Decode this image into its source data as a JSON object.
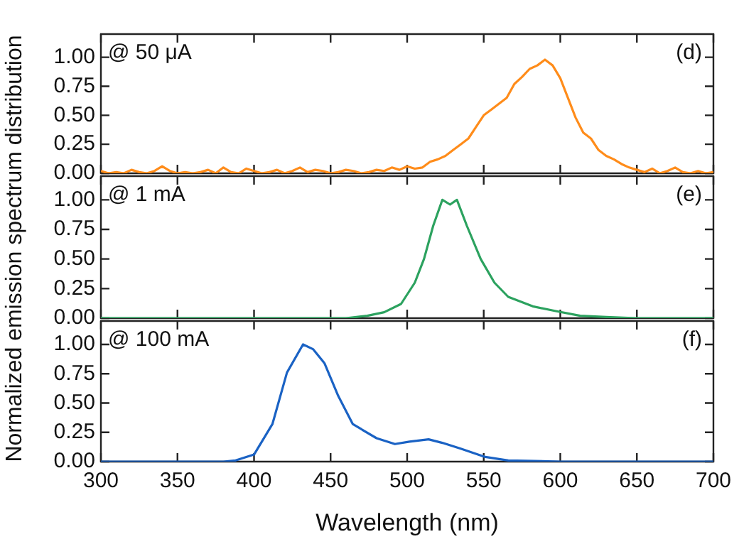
{
  "chart_data": [
    {
      "type": "line",
      "tick_labels": "y",
      "annotations": [
        "@ 50 μA",
        "(d)"
      ],
      "x": [
        300,
        305,
        310,
        315,
        320,
        325,
        330,
        335,
        340,
        345,
        350,
        355,
        360,
        365,
        370,
        375,
        380,
        385,
        390,
        395,
        400,
        405,
        410,
        415,
        420,
        425,
        430,
        435,
        440,
        445,
        450,
        455,
        460,
        465,
        470,
        475,
        480,
        485,
        490,
        495,
        500,
        505,
        510,
        515,
        520,
        525,
        530,
        535,
        540,
        545,
        550,
        555,
        560,
        565,
        570,
        575,
        580,
        585,
        590,
        595,
        600,
        605,
        610,
        615,
        620,
        625,
        630,
        635,
        640,
        645,
        650,
        655,
        660,
        665,
        670,
        675,
        680,
        685,
        690,
        695,
        700
      ],
      "series": [
        {
          "color": "#ff8c1a",
          "values": [
            0.02,
            0.0,
            0.01,
            0.0,
            0.03,
            0.01,
            0.0,
            0.02,
            0.06,
            0.02,
            0.0,
            0.01,
            0.0,
            0.01,
            0.03,
            0.0,
            0.05,
            0.01,
            0.0,
            0.04,
            0.02,
            0.0,
            0.01,
            0.03,
            0.0,
            0.02,
            0.05,
            0.01,
            0.03,
            0.02,
            0.0,
            0.01,
            0.03,
            0.02,
            0.0,
            0.01,
            0.03,
            0.02,
            0.05,
            0.03,
            0.06,
            0.04,
            0.05,
            0.1,
            0.12,
            0.15,
            0.2,
            0.25,
            0.3,
            0.4,
            0.5,
            0.55,
            0.6,
            0.65,
            0.77,
            0.83,
            0.9,
            0.93,
            0.98,
            0.93,
            0.82,
            0.65,
            0.48,
            0.35,
            0.3,
            0.2,
            0.15,
            0.12,
            0.08,
            0.05,
            0.03,
            0.01,
            0.04,
            0.0,
            0.02,
            0.05,
            0.01,
            0.0,
            0.02,
            0.0,
            0.01
          ]
        }
      ],
      "xlim": [
        300,
        700
      ],
      "xticks": [
        300,
        350,
        400,
        450,
        500,
        550,
        600,
        650,
        700
      ],
      "ylim": [
        0,
        1.2
      ],
      "yticks": [
        {
          "value": 0,
          "label": "0.00"
        },
        {
          "value": 0.25,
          "label": "0.25"
        },
        {
          "value": 0.5,
          "label": "0.50"
        },
        {
          "value": 0.75,
          "label": "0.75"
        },
        {
          "value": 1,
          "label": "1.00"
        }
      ]
    },
    {
      "type": "line",
      "tick_labels": "y",
      "annotations": [
        "@ 1 mA",
        "(e)"
      ],
      "ylabel": "Normalized emission spectrum distribution",
      "x": [
        300,
        400,
        460,
        474,
        485,
        496,
        505,
        511,
        517,
        523,
        528,
        532.5,
        539,
        548,
        557,
        566,
        582,
        597,
        613,
        630,
        650,
        700
      ],
      "series": [
        {
          "color": "#2ca25f",
          "values": [
            0,
            0,
            0,
            0.02,
            0.05,
            0.12,
            0.3,
            0.5,
            0.78,
            1.0,
            0.96,
            1.0,
            0.78,
            0.5,
            0.3,
            0.18,
            0.1,
            0.06,
            0.02,
            0.01,
            0,
            0
          ]
        }
      ],
      "xlim": [
        300,
        700
      ],
      "xticks": [
        300,
        350,
        400,
        450,
        500,
        550,
        600,
        650,
        700
      ],
      "ylim": [
        0,
        1.2
      ],
      "yticks": [
        {
          "value": 0,
          "label": "0.00"
        },
        {
          "value": 0.25,
          "label": "0.25"
        },
        {
          "value": 0.5,
          "label": "0.50"
        },
        {
          "value": 0.75,
          "label": "0.75"
        },
        {
          "value": 1,
          "label": "1.00"
        }
      ]
    },
    {
      "type": "line",
      "annotations": [
        "@ 100 mA",
        "(f)"
      ],
      "xlabel": "Wavelength (nm)",
      "x": [
        300,
        380,
        388,
        400,
        412,
        421.5,
        432,
        438.5,
        446,
        455,
        464.5,
        480,
        492,
        501.5,
        514,
        523,
        535,
        551,
        566,
        600,
        700
      ],
      "series": [
        {
          "color": "#1a62c4",
          "values": [
            0,
            0,
            0.01,
            0.06,
            0.32,
            0.76,
            1.0,
            0.96,
            0.84,
            0.56,
            0.32,
            0.2,
            0.15,
            0.17,
            0.19,
            0.16,
            0.11,
            0.04,
            0.01,
            0,
            0
          ]
        }
      ],
      "xlim": [
        300,
        700
      ],
      "xticks": [
        300,
        350,
        400,
        450,
        500,
        550,
        600,
        650,
        700
      ],
      "ylim": [
        0,
        1.2
      ],
      "yticks": [
        {
          "value": 0,
          "label": "0.00"
        },
        {
          "value": 0.25,
          "label": "0.25"
        },
        {
          "value": 0.5,
          "label": "0.50"
        },
        {
          "value": 0.75,
          "label": "0.75"
        },
        {
          "value": 1,
          "label": "1.00"
        }
      ]
    }
  ]
}
